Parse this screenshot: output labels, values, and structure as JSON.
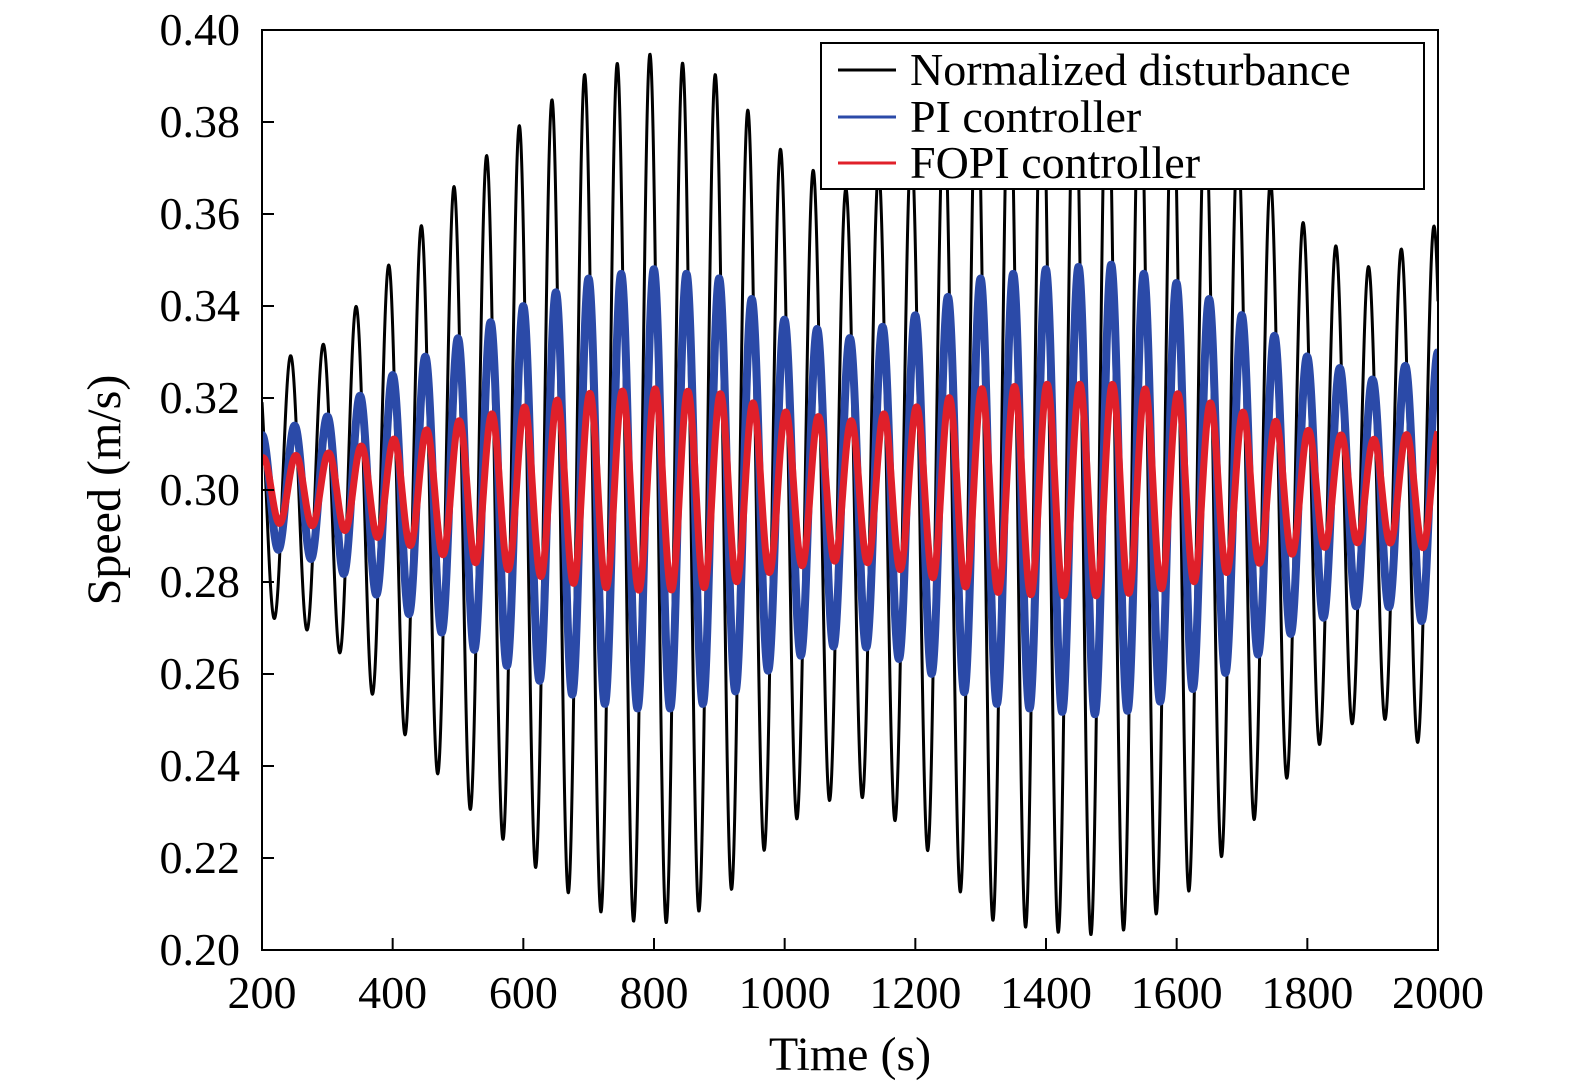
{
  "chart_data": {
    "type": "line",
    "title": "",
    "xlabel": "Time (s)",
    "ylabel": "Speed (m/s)",
    "xlim": [
      200,
      2000
    ],
    "ylim": [
      0.2,
      0.4
    ],
    "xticks": [
      200,
      400,
      600,
      800,
      1000,
      1200,
      1400,
      1600,
      1800,
      2000
    ],
    "xtick_labels": [
      "200",
      "400",
      "600",
      "800",
      "1000",
      "1200",
      "1400",
      "1600",
      "1800",
      "2000"
    ],
    "yticks": [
      0.2,
      0.22,
      0.24,
      0.26,
      0.28,
      0.3,
      0.32,
      0.34,
      0.36,
      0.38,
      0.4
    ],
    "ytick_labels": [
      "0.20",
      "0.22",
      "0.24",
      "0.26",
      "0.28",
      "0.30",
      "0.32",
      "0.34",
      "0.36",
      "0.38",
      "0.40"
    ],
    "grid": false,
    "legend_position": "top-right",
    "period_s": 50,
    "series": [
      {
        "name": "Normalized disturbance",
        "color": "#000000",
        "mean": 0.3,
        "amplitude_envelope": {
          "x": [
            200,
            300,
            400,
            500,
            600,
            700,
            800,
            900,
            1000,
            1100,
            1200,
            1300,
            1400,
            1500,
            1600,
            1700,
            1800,
            1900,
            2000
          ],
          "amp": [
            0.027,
            0.032,
            0.05,
            0.067,
            0.08,
            0.091,
            0.095,
            0.09,
            0.073,
            0.065,
            0.075,
            0.093,
            0.096,
            0.097,
            0.09,
            0.075,
            0.057,
            0.048,
            0.058
          ]
        }
      },
      {
        "name": "PI controller",
        "color": "#2b4aa8",
        "mean": 0.3,
        "amplitude_envelope": {
          "x": [
            200,
            300,
            400,
            500,
            600,
            700,
            800,
            900,
            1000,
            1100,
            1200,
            1300,
            1400,
            1500,
            1600,
            1700,
            1800,
            1900,
            2000
          ],
          "amp": [
            0.012,
            0.016,
            0.025,
            0.033,
            0.04,
            0.046,
            0.048,
            0.046,
            0.037,
            0.033,
            0.038,
            0.046,
            0.048,
            0.049,
            0.045,
            0.038,
            0.029,
            0.024,
            0.03
          ]
        }
      },
      {
        "name": "FOPI controller",
        "color": "#e0202a",
        "mean": 0.3,
        "amplitude_envelope": {
          "x": [
            200,
            300,
            400,
            500,
            600,
            700,
            800,
            900,
            1000,
            1100,
            1200,
            1300,
            1400,
            1500,
            1600,
            1700,
            1800,
            1900,
            2000
          ],
          "amp": [
            0.007,
            0.008,
            0.011,
            0.015,
            0.018,
            0.021,
            0.022,
            0.021,
            0.017,
            0.015,
            0.018,
            0.022,
            0.023,
            0.023,
            0.021,
            0.017,
            0.013,
            0.011,
            0.013
          ]
        }
      }
    ]
  }
}
